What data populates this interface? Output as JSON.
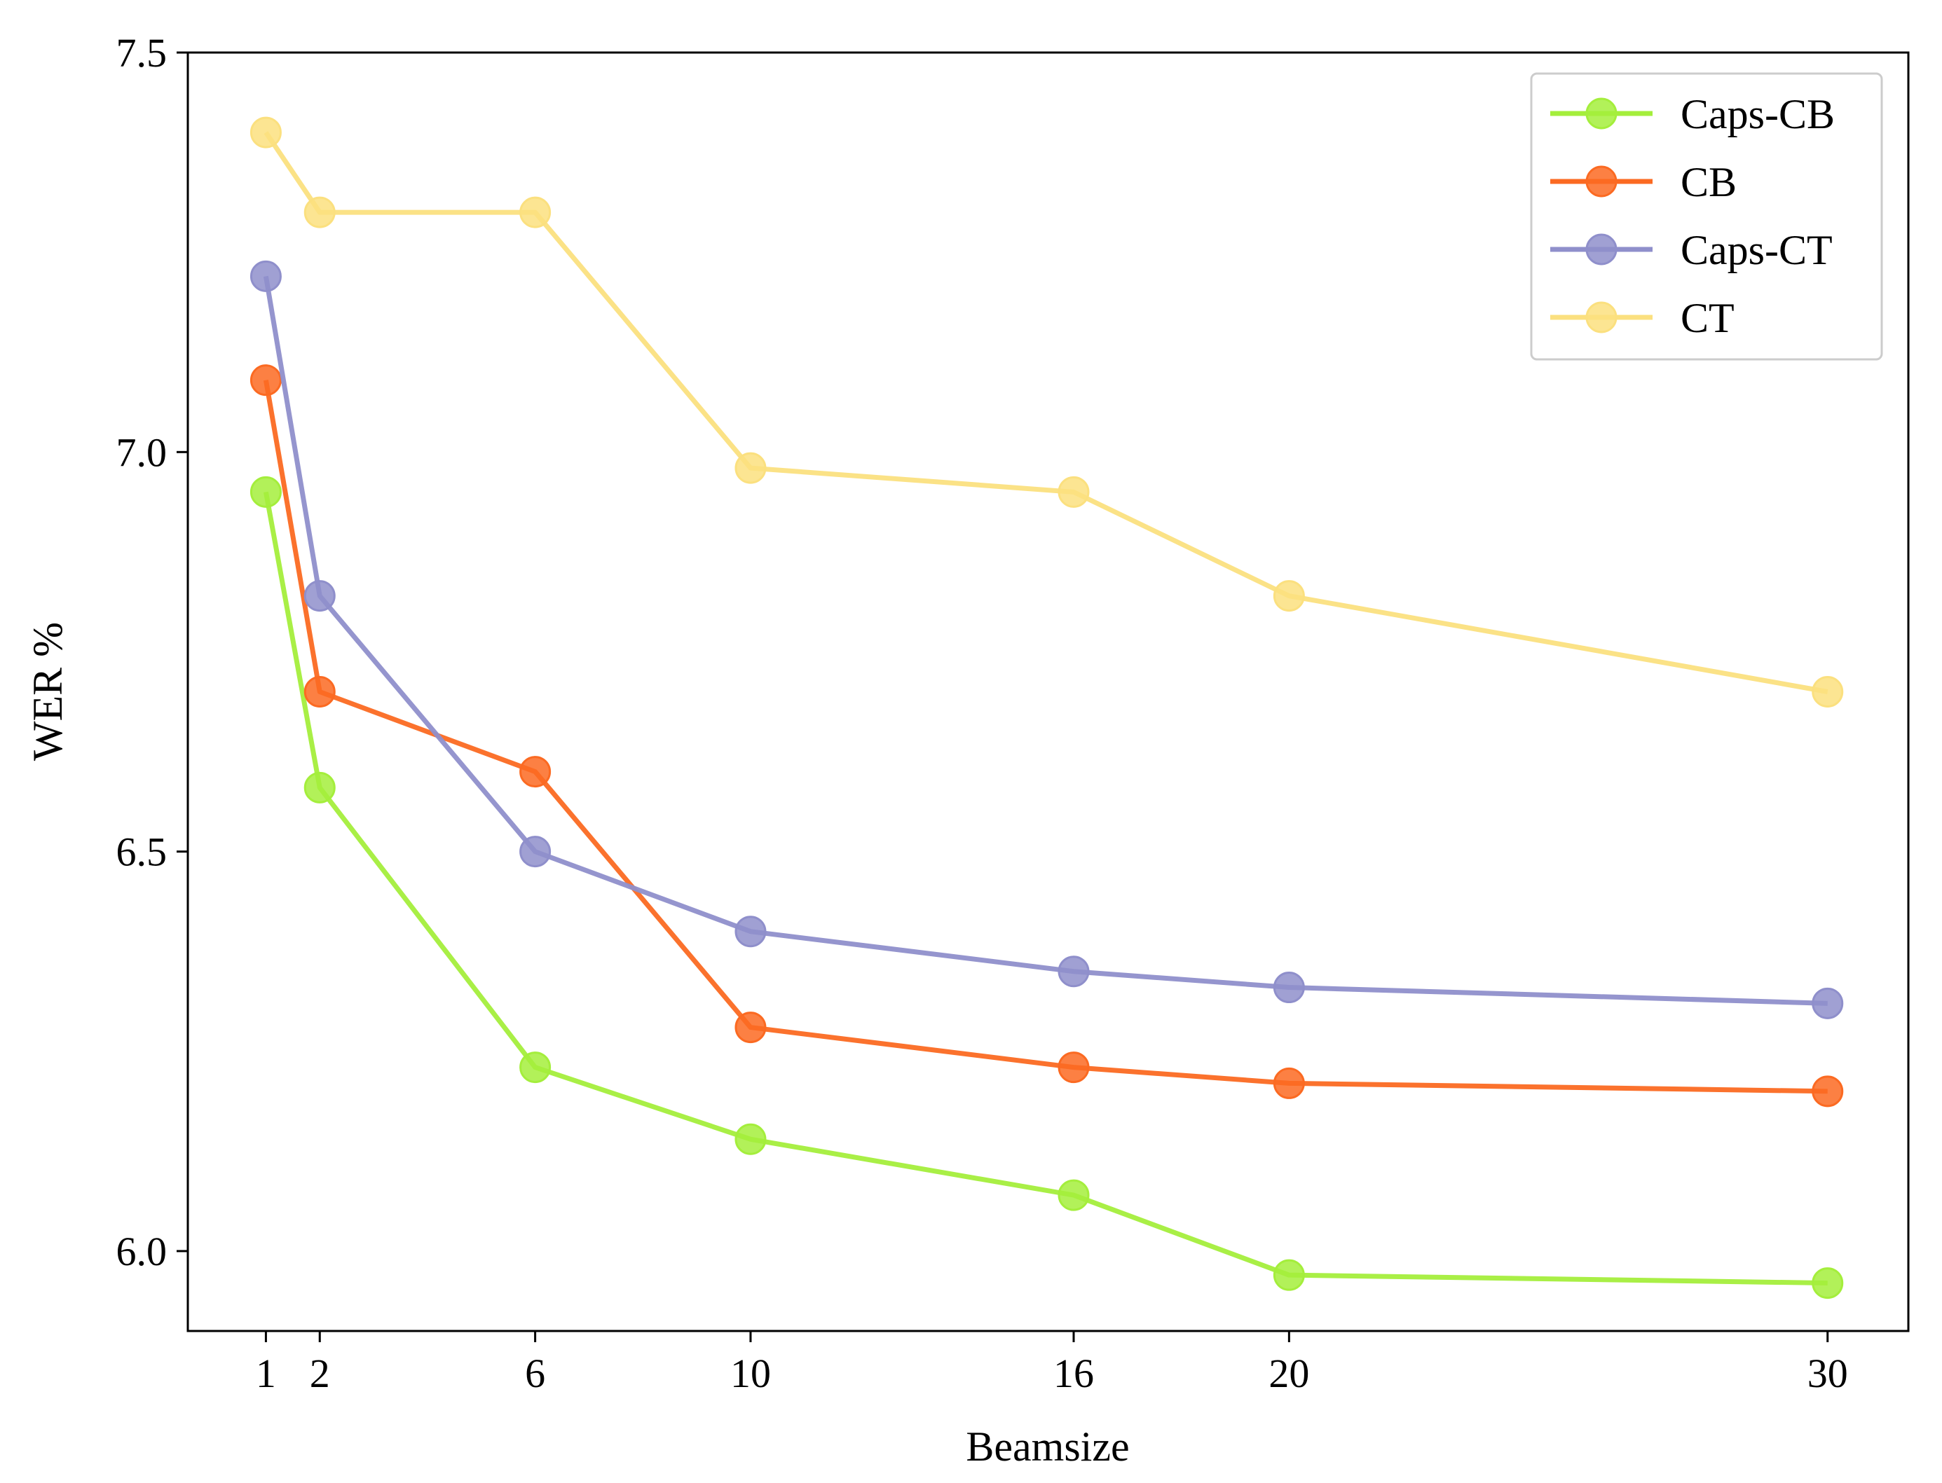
{
  "chart_data": {
    "type": "line",
    "title": "",
    "xlabel": "Beamsize",
    "ylabel": "WER %",
    "x": [
      1,
      2,
      6,
      10,
      16,
      20,
      30
    ],
    "xticks": [
      "1",
      "2",
      "6",
      "10",
      "16",
      "20",
      "30"
    ],
    "yticks": [
      "6.0",
      "6.5",
      "7.0",
      "7.5"
    ],
    "xlim": [
      -0.45,
      31.5
    ],
    "ylim": [
      5.9,
      7.5
    ],
    "grid": false,
    "legend_position": "top-right",
    "series": [
      {
        "name": "Caps-CB",
        "color": "#a4ee3c",
        "values": [
          6.95,
          6.58,
          6.23,
          6.14,
          6.07,
          5.97,
          5.96
        ]
      },
      {
        "name": "CB",
        "color": "#fb6a22",
        "values": [
          7.09,
          6.7,
          6.6,
          6.28,
          6.23,
          6.21,
          6.2
        ]
      },
      {
        "name": "Caps-CT",
        "color": "#8f8fcb",
        "values": [
          7.22,
          6.82,
          6.5,
          6.4,
          6.35,
          6.33,
          6.31
        ]
      },
      {
        "name": "CT",
        "color": "#fbe07f",
        "values": [
          7.4,
          7.3,
          7.3,
          6.98,
          6.95,
          6.82,
          6.7
        ]
      }
    ]
  }
}
